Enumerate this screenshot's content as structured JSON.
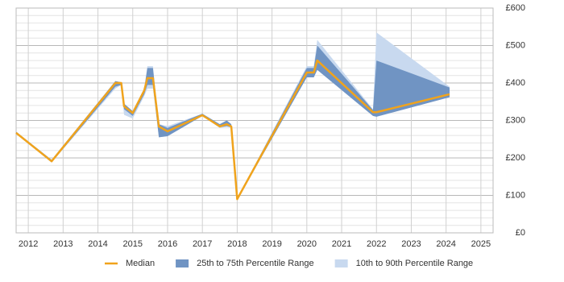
{
  "chart_data": {
    "type": "band-line",
    "x": [
      2011.65,
      2012.67,
      2014.5,
      2014.67,
      2014.75,
      2015.0,
      2015.33,
      2015.42,
      2015.58,
      2015.75,
      2016.0,
      2017.0,
      2017.5,
      2017.7,
      2017.83,
      2018.0,
      2020.0,
      2020.2,
      2020.3,
      2021.9,
      2022.0,
      2024.1
    ],
    "series": [
      {
        "name": "10th to 90th Percentile Range",
        "color": "#c8d9ef",
        "low": [
          265,
          188,
          385,
          395,
          315,
          305,
          365,
          385,
          385,
          255,
          258,
          312,
          280,
          283,
          280,
          88,
          415,
          415,
          435,
          312,
          310,
          362
        ],
        "high": [
          270,
          195,
          405,
          402,
          345,
          325,
          385,
          445,
          445,
          290,
          285,
          318,
          290,
          300,
          290,
          92,
          445,
          445,
          515,
          330,
          535,
          390
        ]
      },
      {
        "name": "25th to 75th Percentile Range",
        "color": "#7094c3",
        "low": [
          265,
          188,
          390,
          395,
          330,
          312,
          370,
          395,
          395,
          255,
          258,
          312,
          282,
          285,
          282,
          88,
          415,
          415,
          435,
          312,
          310,
          362
        ],
        "high": [
          270,
          195,
          405,
          402,
          345,
          325,
          385,
          440,
          440,
          290,
          280,
          318,
          290,
          300,
          290,
          92,
          440,
          440,
          500,
          328,
          460,
          388
        ]
      },
      {
        "name": "Median",
        "color": "#f0a31c",
        "values": [
          267,
          191,
          400,
          400,
          338,
          320,
          380,
          413,
          413,
          284,
          271,
          314,
          284,
          290,
          284,
          90,
          428,
          428,
          460,
          322,
          322,
          370
        ]
      }
    ],
    "xlim": [
      2011.65,
      2025.35
    ],
    "xticks": [
      2012,
      2013,
      2014,
      2015,
      2016,
      2017,
      2018,
      2019,
      2020,
      2021,
      2022,
      2023,
      2024,
      2025
    ],
    "ylim": [
      0,
      600
    ],
    "yticks": [
      {
        "value": 0,
        "label": "£0"
      },
      {
        "value": 100,
        "label": "£100"
      },
      {
        "value": 200,
        "label": "£200"
      },
      {
        "value": 300,
        "label": "£300"
      },
      {
        "value": 400,
        "label": "£400"
      },
      {
        "value": 500,
        "label": "£500"
      },
      {
        "value": 600,
        "label": "£600"
      }
    ],
    "minor_yticks": [
      20,
      40,
      60,
      80,
      120,
      140,
      160,
      180,
      220,
      240,
      260,
      280,
      320,
      340,
      360,
      380,
      420,
      440,
      460,
      480,
      520,
      540,
      560,
      580
    ],
    "grid": true
  }
}
